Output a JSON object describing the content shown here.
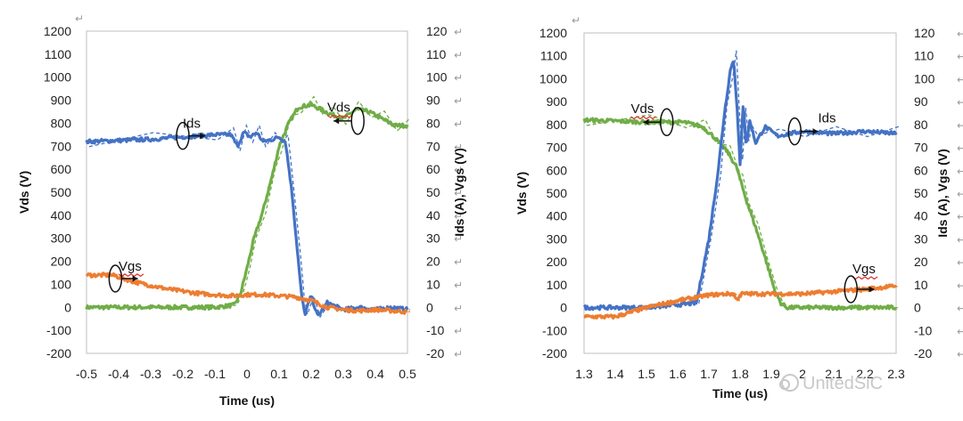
{
  "watermark": "UnitedSiC",
  "paragraph_mark": "↵",
  "colors": {
    "vds": "#70ad47",
    "ids": "#4472c4",
    "vgs": "#ed7d31",
    "grid": "#bfbfbf",
    "squiggle": "#e03030"
  },
  "chart_data": [
    {
      "type": "line",
      "title": "",
      "xlabel": "Time (us)",
      "ylabel": "Vds (V)",
      "y2label": "Ids (A), Vgs (V)",
      "xlim": [
        -0.5,
        0.5
      ],
      "ylim": [
        -200,
        1200
      ],
      "y2lim": [
        -20,
        120
      ],
      "x_ticks": [
        "-0.5",
        "-0.4",
        "-0.3",
        "-0.2",
        "-0.1",
        "0",
        "0.1",
        "0.2",
        "0.3",
        "0.4",
        "0.5"
      ],
      "y_ticks": [
        "1200",
        "1100",
        "1000",
        "900",
        "800",
        "700",
        "600",
        "500",
        "400",
        "300",
        "200",
        "100",
        "0",
        "-100",
        "-200"
      ],
      "y2_ticks": [
        "120",
        "110",
        "100",
        "90",
        "80",
        "70",
        "60",
        "50",
        "40",
        "30",
        "20",
        "10",
        "0",
        "-10",
        "-20"
      ],
      "annotations": [
        {
          "label": "Ids",
          "x": -0.2,
          "y": 780,
          "ellipse_x": -0.2,
          "ellipse_y": 745,
          "arrow_to_x": -0.13
        },
        {
          "label": "Vds",
          "x": 0.25,
          "y": 850,
          "ellipse_x": 0.345,
          "ellipse_y": 810,
          "arrow_to_x": 0.27
        },
        {
          "label": "Vgs",
          "x": -0.4,
          "y": 160,
          "ellipse_x": -0.41,
          "ellipse_y": 125,
          "arrow_to_x": -0.34
        }
      ],
      "series": [
        {
          "name": "Vds",
          "color": "vds",
          "axis": "left",
          "x": [
            -0.5,
            -0.1,
            -0.04,
            -0.02,
            0.0,
            0.02,
            0.05,
            0.08,
            0.1,
            0.13,
            0.16,
            0.2,
            0.23,
            0.26,
            0.3,
            0.34,
            0.38,
            0.42,
            0.46,
            0.5
          ],
          "y": [
            0,
            0,
            10,
            60,
            170,
            290,
            420,
            580,
            700,
            800,
            870,
            880,
            860,
            840,
            820,
            860,
            850,
            820,
            790,
            790
          ]
        },
        {
          "name": "Ids",
          "color": "ids",
          "axis": "right",
          "x": [
            -0.5,
            -0.3,
            -0.1,
            -0.05,
            -0.03,
            -0.01,
            0.01,
            0.03,
            0.05,
            0.08,
            0.1,
            0.12,
            0.14,
            0.16,
            0.17,
            0.18,
            0.2,
            0.22,
            0.25,
            0.3,
            0.35,
            0.4,
            0.45,
            0.5
          ],
          "y": [
            72,
            73,
            75,
            75,
            70,
            76,
            74,
            76,
            72,
            73,
            74,
            72,
            50,
            20,
            5,
            -3,
            5,
            -4,
            2,
            -1,
            0,
            -1,
            0,
            -1
          ]
        },
        {
          "name": "Vgs",
          "color": "vgs",
          "axis": "right",
          "x": [
            -0.5,
            -0.42,
            -0.35,
            -0.25,
            -0.15,
            -0.05,
            0.0,
            0.05,
            0.1,
            0.15,
            0.2,
            0.25,
            0.3,
            0.35,
            0.4,
            0.45,
            0.5
          ],
          "y": [
            14,
            14,
            11,
            8,
            6,
            5,
            5.5,
            5.5,
            5,
            4.5,
            3,
            0,
            -1,
            -1.5,
            -1,
            -1.5,
            -2
          ]
        }
      ]
    },
    {
      "type": "line",
      "title": "",
      "xlabel": "Time (us)",
      "ylabel": "Vds (V)",
      "y2label": "Ids (A), Vgs (V)",
      "xlim": [
        1.3,
        2.3
      ],
      "ylim": [
        -200,
        1200
      ],
      "y2lim": [
        -20,
        120
      ],
      "x_ticks": [
        "1.3",
        "1.4",
        "1.5",
        "1.6",
        "1.7",
        "1.8",
        "1.9",
        "2",
        "2.1",
        "2.2",
        "2.3"
      ],
      "y_ticks": [
        "1200",
        "1100",
        "1000",
        "900",
        "800",
        "700",
        "600",
        "500",
        "400",
        "300",
        "200",
        "100",
        "0",
        "-100",
        "-200"
      ],
      "y2_ticks": [
        "120",
        "110",
        "100",
        "90",
        "80",
        "70",
        "60",
        "50",
        "40",
        "30",
        "20",
        "10",
        "0",
        "-10",
        "-20"
      ],
      "annotations": [
        {
          "label": "Vds",
          "x": 1.45,
          "y": 850,
          "ellipse_x": 1.565,
          "ellipse_y": 810,
          "arrow_to_x": 1.49
        },
        {
          "label": "Ids",
          "x": 2.05,
          "y": 810,
          "ellipse_x": 1.975,
          "ellipse_y": 770,
          "arrow_to_x": 2.05
        },
        {
          "label": "Vgs",
          "x": 2.16,
          "y": 150,
          "ellipse_x": 2.155,
          "ellipse_y": 80,
          "arrow_to_x": 2.23
        }
      ],
      "series": [
        {
          "name": "Vds",
          "color": "vds",
          "axis": "left",
          "x": [
            1.3,
            1.5,
            1.62,
            1.68,
            1.72,
            1.76,
            1.79,
            1.8,
            1.82,
            1.85,
            1.88,
            1.91,
            1.93,
            1.95,
            2.0,
            2.1,
            2.2,
            2.3
          ],
          "y": [
            820,
            810,
            810,
            790,
            740,
            680,
            610,
            560,
            470,
            350,
            220,
            80,
            20,
            0,
            0,
            0,
            0,
            0
          ]
        },
        {
          "name": "Ids",
          "color": "ids",
          "axis": "right",
          "x": [
            1.3,
            1.5,
            1.66,
            1.7,
            1.73,
            1.75,
            1.77,
            1.78,
            1.79,
            1.8,
            1.81,
            1.82,
            1.83,
            1.85,
            1.88,
            1.92,
            2.0,
            2.1,
            2.2,
            2.3
          ],
          "y": [
            0,
            0,
            2,
            30,
            60,
            85,
            105,
            108,
            88,
            62,
            90,
            70,
            82,
            72,
            79,
            75,
            77,
            76,
            77,
            76
          ]
        },
        {
          "name": "Vgs",
          "color": "vgs",
          "axis": "right",
          "x": [
            1.3,
            1.4,
            1.5,
            1.6,
            1.7,
            1.76,
            1.78,
            1.79,
            1.8,
            1.82,
            1.9,
            2.0,
            2.1,
            2.2,
            2.3
          ],
          "y": [
            -4,
            -4,
            0,
            3,
            5.5,
            6,
            6,
            3,
            6,
            6,
            6,
            6,
            7,
            8,
            9.5
          ]
        }
      ]
    }
  ]
}
